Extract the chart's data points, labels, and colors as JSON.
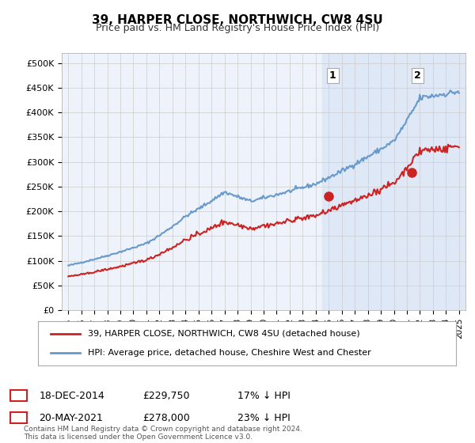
{
  "title": "39, HARPER CLOSE, NORTHWICH, CW8 4SU",
  "subtitle": "Price paid vs. HM Land Registry's House Price Index (HPI)",
  "ylabel_ticks": [
    "£0",
    "£50K",
    "£100K",
    "£150K",
    "£200K",
    "£250K",
    "£300K",
    "£350K",
    "£400K",
    "£450K",
    "£500K"
  ],
  "ytick_values": [
    0,
    50000,
    100000,
    150000,
    200000,
    250000,
    300000,
    350000,
    400000,
    450000,
    500000
  ],
  "ylim": [
    0,
    520000
  ],
  "xlim_start": 1994.5,
  "xlim_end": 2025.5,
  "background_color": "#ffffff",
  "plot_bg_color": "#eef2fa",
  "grid_color": "#cccccc",
  "hpi_color": "#6699cc",
  "price_color": "#cc2222",
  "sale1_x": 2014.96,
  "sale1_y": 229750,
  "sale2_x": 2021.38,
  "sale2_y": 278000,
  "annotation1_label": "1",
  "annotation2_label": "2",
  "legend_line1": "39, HARPER CLOSE, NORTHWICH, CW8 4SU (detached house)",
  "legend_line2": "HPI: Average price, detached house, Cheshire West and Chester",
  "table_row1": [
    "1",
    "18-DEC-2014",
    "£229,750",
    "17% ↓ HPI"
  ],
  "table_row2": [
    "2",
    "20-MAY-2021",
    "£278,000",
    "23% ↓ HPI"
  ],
  "footnote": "Contains HM Land Registry data © Crown copyright and database right 2024.\nThis data is licensed under the Open Government Licence v3.0.",
  "highlight_x1": 2014.5,
  "highlight_x2": 2025.5,
  "highlight_color": "#dce6f5"
}
